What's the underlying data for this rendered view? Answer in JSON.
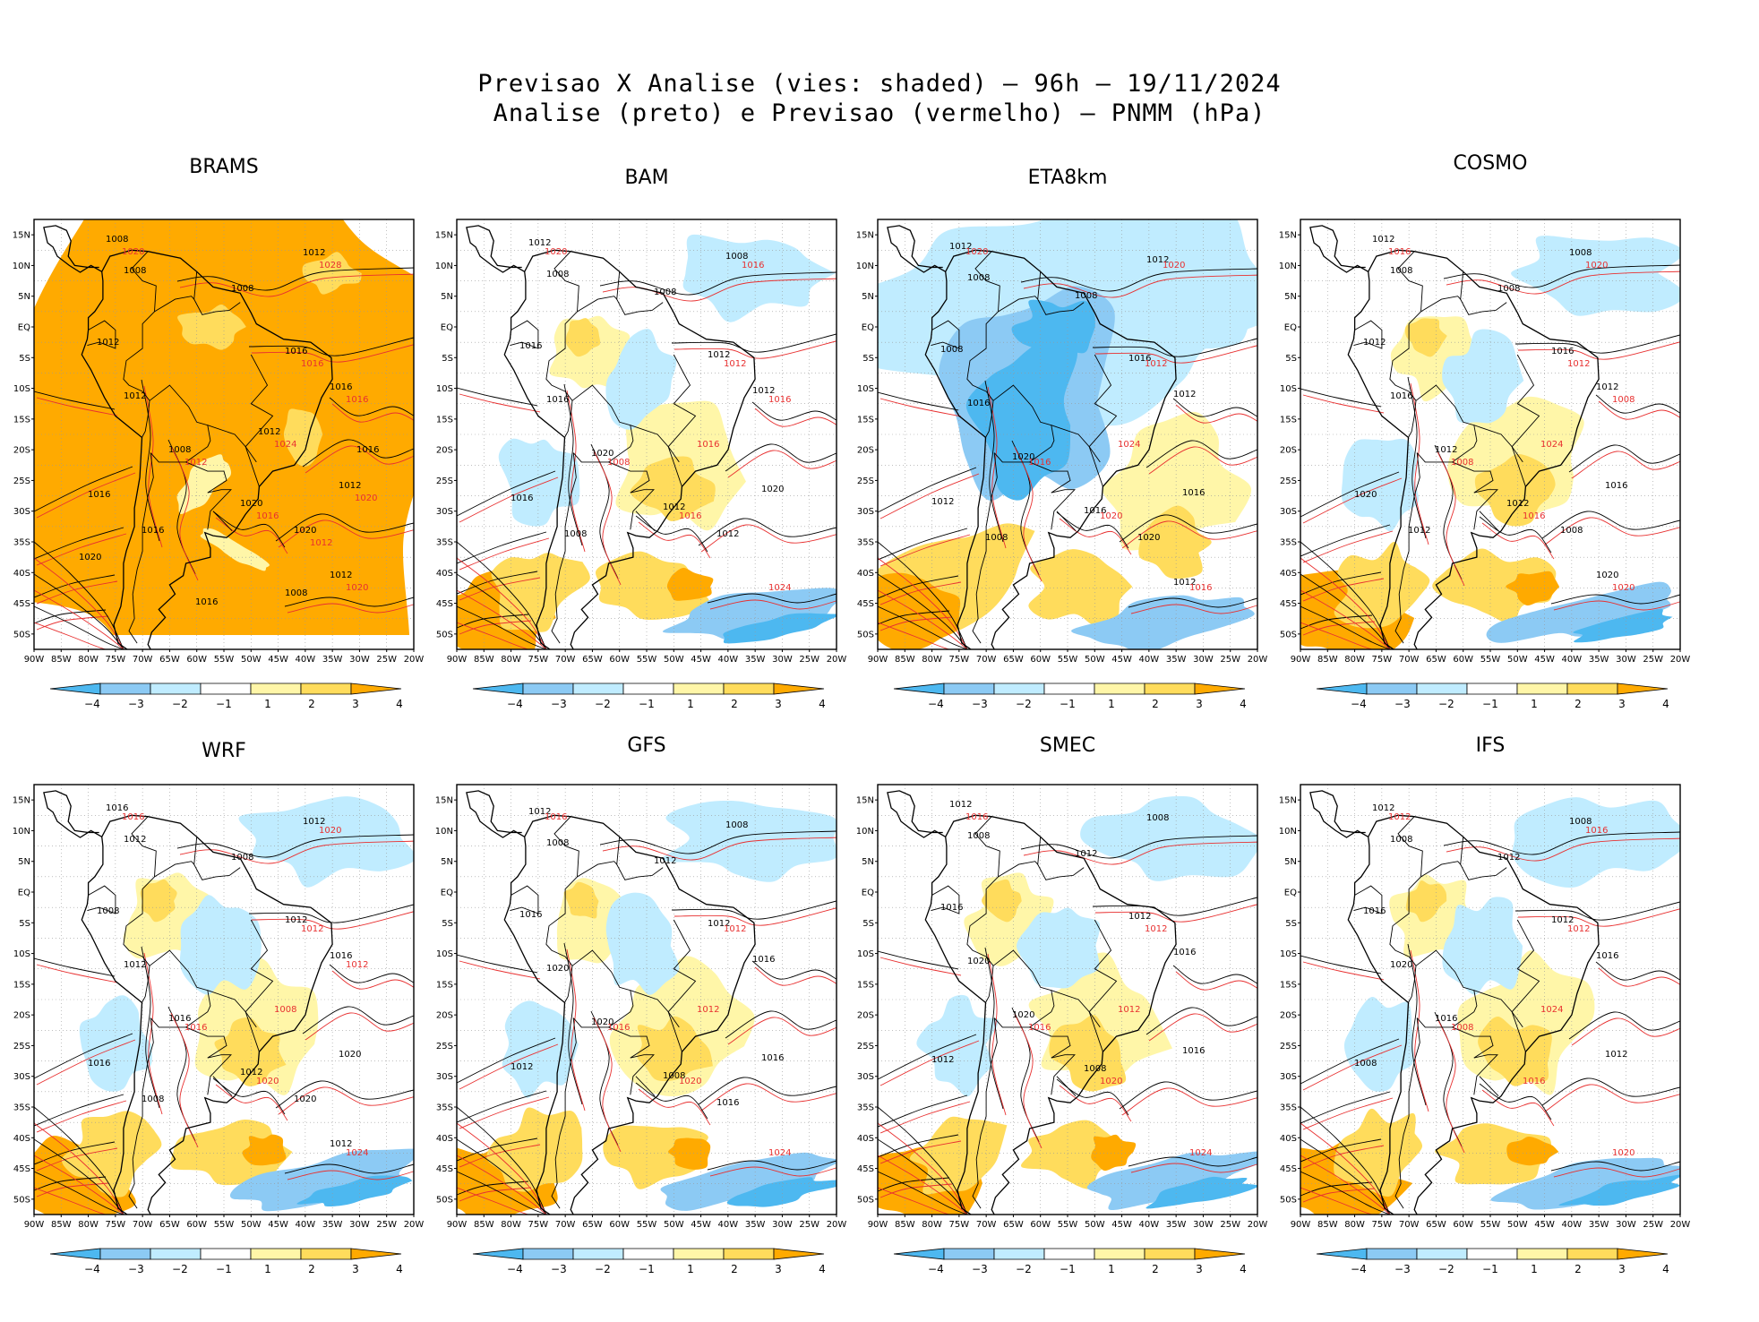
{
  "header": {
    "line1": "Previsao X Analise (vies: shaded) – 96h – 19/11/2024",
    "line2": "Analise (preto) e Previsao (vermelho) – PNMM (hPa)"
  },
  "axes": {
    "lat_labels": [
      "15N",
      "10N",
      "5N",
      "EQ",
      "5S",
      "10S",
      "15S",
      "20S",
      "25S",
      "30S",
      "35S",
      "40S",
      "45S",
      "50S"
    ],
    "lon_labels": [
      "90W",
      "85W",
      "80W",
      "75W",
      "70W",
      "65W",
      "60W",
      "55W",
      "50W",
      "45W",
      "40W",
      "35W",
      "30W",
      "25W",
      "20W"
    ]
  },
  "colorbar": {
    "labels": [
      "−4",
      "−3",
      "−2",
      "−1",
      "1",
      "2",
      "3",
      "4"
    ],
    "colors": [
      "#4db8f0",
      "#8ccaf4",
      "#c0ecff",
      "#ffffff",
      "#fff6a8",
      "#ffdc5c",
      "#ffaa00"
    ]
  },
  "colors": {
    "analysis": "#000000",
    "forecast": "#e83030",
    "coast": "#000000"
  },
  "panels": [
    {
      "name": "BRAMS",
      "bias": "warm",
      "black_labels": [
        "1008",
        "1008",
        "1008",
        "1012",
        "1012",
        "1016",
        "1016",
        "1012",
        "1008",
        "1012",
        "1016",
        "1020",
        "1020",
        "1016",
        "1012",
        "1008",
        "1016",
        "1012",
        "1016",
        "1020"
      ],
      "red_labels": [
        "1016",
        "1012",
        "1016",
        "1020",
        "1024",
        "1020",
        "1028",
        "1016",
        "1020",
        "1012"
      ]
    },
    {
      "name": "BAM",
      "bias": "mixed",
      "black_labels": [
        "1012",
        "1008",
        "1008",
        "1008",
        "1016",
        "1012",
        "1012",
        "1016",
        "1020",
        "1020",
        "1016",
        "1012",
        "1012",
        "1008"
      ],
      "red_labels": [
        "1012",
        "1008",
        "1016",
        "1024",
        "1016",
        "1020",
        "1016",
        "1016"
      ]
    },
    {
      "name": "ETA8km",
      "bias": "cold",
      "black_labels": [
        "1012",
        "1008",
        "1008",
        "1012",
        "1008",
        "1016",
        "1012",
        "1016",
        "1020",
        "1016",
        "1012",
        "1016",
        "1020",
        "1008",
        "1012"
      ],
      "red_labels": [
        "1012",
        "1016",
        "1020",
        "1016",
        "1024",
        "1020",
        "1020"
      ]
    },
    {
      "name": "COSMO",
      "bias": "mixed",
      "black_labels": [
        "1012",
        "1008",
        "1008",
        "1008",
        "1012",
        "1016",
        "1012",
        "1016",
        "1012",
        "1016",
        "1020",
        "1012",
        "1008",
        "1012",
        "1020"
      ],
      "red_labels": [
        "1012",
        "1008",
        "1016",
        "1020",
        "1024",
        "1016",
        "1020",
        "1008"
      ]
    },
    {
      "name": "WRF",
      "bias": "mixed",
      "black_labels": [
        "1016",
        "1012",
        "1008",
        "1012",
        "1008",
        "1012",
        "1016",
        "1012",
        "1016",
        "1020",
        "1016",
        "1012",
        "1020",
        "1008",
        "1012"
      ],
      "red_labels": [
        "1012",
        "1016",
        "1020",
        "1024",
        "1008",
        "1016",
        "1020",
        "1012"
      ]
    },
    {
      "name": "GFS",
      "bias": "mixed",
      "black_labels": [
        "1012",
        "1008",
        "1012",
        "1008",
        "1016",
        "1012",
        "1016",
        "1020",
        "1020",
        "1016",
        "1012",
        "1008",
        "1016"
      ],
      "red_labels": [
        "1012",
        "1016",
        "1020",
        "1024",
        "1012",
        "1016"
      ]
    },
    {
      "name": "SMEC",
      "bias": "mixed",
      "black_labels": [
        "1012",
        "1008",
        "1012",
        "1008",
        "1016",
        "1012",
        "1016",
        "1020",
        "1020",
        "1016",
        "1012",
        "1008"
      ],
      "red_labels": [
        "1012",
        "1016",
        "1020",
        "1024",
        "1012",
        "1016"
      ]
    },
    {
      "name": "IFS",
      "bias": "mixed",
      "black_labels": [
        "1012",
        "1008",
        "1012",
        "1008",
        "1016",
        "1012",
        "1016",
        "1020",
        "1016",
        "1012",
        "1008"
      ],
      "red_labels": [
        "1012",
        "1008",
        "1016",
        "1020",
        "1024",
        "1012",
        "1016"
      ]
    }
  ]
}
